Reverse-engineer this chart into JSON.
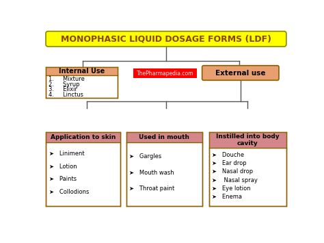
{
  "title": "MONOPHASIC LIQUID DOSAGE FORMS (LDF)",
  "title_bg": "#FFFF00",
  "title_color": "#8B4500",
  "title_fontsize": 9,
  "bg_color": "#FFFFFF",
  "watermark": "ThePharmapedia.com",
  "watermark_bg": "#FF0000",
  "watermark_color": "#FFFFFF",
  "internal_use": {
    "label": "Internal Use",
    "bg": "#E8A070",
    "border": "#8B6000",
    "items": [
      "1.     Mixture",
      "2.     Syrup",
      "3.     Elixir",
      "4.     Linctus"
    ],
    "text_color": "#000000"
  },
  "external_use": {
    "label": "External use",
    "bg": "#E8A070",
    "border": "#8B6000",
    "text_color": "#000000"
  },
  "sub_boxes": [
    {
      "label": "Application to skin",
      "header_bg": "#D4878A",
      "border": "#8B6000",
      "items": [
        "➤   Liniment",
        "➤   Lotion",
        "➤   Paints",
        "➤   Collodions"
      ],
      "text_color": "#000000"
    },
    {
      "label": "Used in mouth",
      "header_bg": "#D4878A",
      "border": "#8B6000",
      "items": [
        "➤   Gargles",
        "➤   Mouth wash",
        "➤   Throat paint"
      ],
      "text_color": "#000000"
    },
    {
      "label": "Instilled into body\ncavity",
      "header_bg": "#D4878A",
      "border": "#8B6000",
      "items": [
        "➤   Douche",
        "➤   Ear drop",
        "➤   Nasal drop",
        "➤    Nasal spray",
        "➤   Eye lotion",
        "➤   Enema"
      ],
      "text_color": "#000000"
    }
  ],
  "line_color": "#555555"
}
